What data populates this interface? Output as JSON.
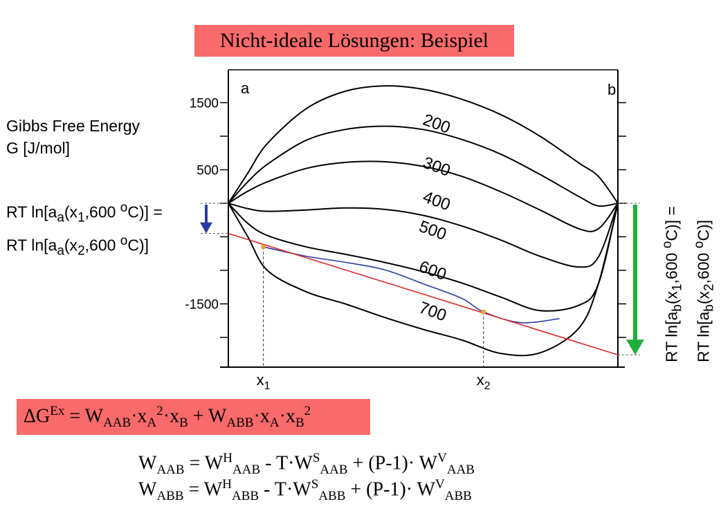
{
  "title": "Nicht-ideale Lösungen: Beispiel",
  "ylabel_line1": "Gibbs Free Energy",
  "ylabel_line2": "G [J/mol]",
  "rt_left": {
    "line1": {
      "pre": "RT ln[a",
      "sub": "a",
      "mid": "(x",
      "sub2": "1",
      "post1": ",600 ",
      "sup": "o",
      "post2": "C)] ="
    },
    "line2": {
      "pre": "RT ln[a",
      "sub": "a",
      "mid": "(x",
      "sub2": "2",
      "post1": ",600 ",
      "sup": "o",
      "post2": "C)]"
    }
  },
  "rt_right": {
    "line1": {
      "pre": "RT ln[a",
      "sub": "b",
      "mid": "(x",
      "sub2": "1",
      "post1": ",600 ",
      "sup": "o",
      "post2": "C)] ="
    },
    "line2": {
      "pre": "RT ln[a",
      "sub": "b",
      "mid": "(x",
      "sub2": "2",
      "post1": ",600 ",
      "sup": "o",
      "post2": "C)]"
    }
  },
  "chart_data": {
    "type": "line",
    "corner_labels": {
      "left": "a",
      "right": "b"
    },
    "ytick_labels": [
      {
        "value": 1500,
        "label": "1500"
      },
      {
        "value": 500,
        "label": "500"
      },
      {
        "value": -1500,
        "label": "-1500"
      }
    ],
    "yticks_minor": [
      1000,
      0,
      -500,
      -1000,
      -2000
    ],
    "ylim": [
      -2500,
      2000
    ],
    "xlim": [
      0,
      1
    ],
    "x_markers": [
      {
        "name": "x",
        "sub": "1",
        "x": 0.09,
        "y": -650
      },
      {
        "name": "x",
        "sub": "2",
        "x": 0.655,
        "y": -1620
      }
    ],
    "series": [
      {
        "name": "200",
        "x": [
          0,
          0.05,
          0.1,
          0.2,
          0.3,
          0.4,
          0.5,
          0.6,
          0.7,
          0.8,
          0.9,
          0.95,
          1
        ],
        "y": [
          0,
          450,
          890,
          1410,
          1670,
          1750,
          1700,
          1550,
          1320,
          1000,
          600,
          400,
          0
        ],
        "color": "#000000"
      },
      {
        "name": "300",
        "x": [
          0,
          0.05,
          0.1,
          0.2,
          0.3,
          0.4,
          0.5,
          0.6,
          0.7,
          0.8,
          0.9,
          0.95,
          1
        ],
        "y": [
          0,
          320,
          580,
          940,
          1100,
          1150,
          1100,
          950,
          730,
          430,
          100,
          -40,
          0
        ],
        "color": "#000000"
      },
      {
        "name": "400",
        "x": [
          0,
          0.05,
          0.1,
          0.2,
          0.3,
          0.4,
          0.5,
          0.6,
          0.7,
          0.8,
          0.9,
          0.95,
          1
        ],
        "y": [
          0,
          180,
          320,
          520,
          610,
          620,
          550,
          400,
          170,
          -100,
          -380,
          -380,
          0
        ],
        "color": "#000000"
      },
      {
        "name": "500",
        "x": [
          0,
          0.05,
          0.1,
          0.2,
          0.3,
          0.4,
          0.5,
          0.6,
          0.7,
          0.8,
          0.9,
          0.95,
          1
        ],
        "y": [
          0,
          -80,
          -120,
          -100,
          -70,
          -90,
          -180,
          -340,
          -550,
          -790,
          -950,
          -800,
          0
        ],
        "color": "#000000"
      },
      {
        "name": "600",
        "x": [
          0,
          0.05,
          0.1,
          0.2,
          0.3,
          0.4,
          0.5,
          0.6,
          0.7,
          0.8,
          0.9,
          0.95,
          1
        ],
        "y": [
          0,
          -300,
          -480,
          -650,
          -760,
          -880,
          -1020,
          -1190,
          -1400,
          -1600,
          -1520,
          -1200,
          0
        ],
        "color": "#000000"
      },
      {
        "name": "600 (blau)",
        "x": [
          0.09,
          0.2,
          0.3,
          0.4,
          0.5,
          0.6,
          0.655,
          0.75,
          0.85
        ],
        "y": [
          -650,
          -790,
          -880,
          -990,
          -1200,
          -1420,
          -1620,
          -1780,
          -1720
        ],
        "color": "#2a3aa6"
      },
      {
        "name": "700",
        "x": [
          0,
          0.05,
          0.1,
          0.2,
          0.3,
          0.4,
          0.5,
          0.6,
          0.7,
          0.8,
          0.9,
          0.95,
          1
        ],
        "y": [
          0,
          -500,
          -1000,
          -1320,
          -1500,
          -1700,
          -1880,
          -2040,
          -2240,
          -2230,
          -1860,
          -1200,
          0
        ],
        "color": "#000000"
      },
      {
        "name": "tangente",
        "x": [
          0,
          1
        ],
        "y": [
          -450,
          -2260
        ],
        "color": "#e02626"
      }
    ],
    "label_positions_data": [
      {
        "name": "200",
        "x": 0.53,
        "y": 1110
      },
      {
        "name": "300",
        "x": 0.53,
        "y": 470
      },
      {
        "name": "400",
        "x": 0.53,
        "y": -40
      },
      {
        "name": "500",
        "x": 0.52,
        "y": -480
      },
      {
        "name": "600",
        "x": 0.52,
        "y": -1080
      },
      {
        "name": "700",
        "x": 0.52,
        "y": -1690
      }
    ],
    "arrows": [
      {
        "name": "left-arrow",
        "color": "#2a3aa6",
        "x": 0,
        "y_from": 0,
        "y_to": -450
      },
      {
        "name": "right-arrow",
        "color": "#1fae3c",
        "x": 1,
        "y_from": 0,
        "y_to": -2260
      }
    ]
  },
  "formula_main": {
    "p1": "ΔG",
    "sup1": "Ex",
    "p2": " = W",
    "sub1": "AAB",
    "p3": "·x",
    "sub2": "A",
    "sup2": "2",
    "p4": "·x",
    "sub3": "B",
    "p5": " + W",
    "sub4": "ABB",
    "p6": "·x",
    "sub5": "A",
    "p7": "·x",
    "sub6": "B",
    "sup3": "2"
  },
  "formula_1": {
    "p1": "W",
    "sub1": "AAB",
    "p2": " = W",
    "sup1": "H",
    "sub2": "AAB",
    "p3": " - T·W",
    "sup2": "S",
    "sub3": "AAB",
    "p4": " + (P-1)· W",
    "sup3": "V",
    "sub4": "AAB"
  },
  "formula_2": {
    "p1": "W",
    "sub1": "ABB",
    "p2": " = W",
    "sup1": "H",
    "sub2": "ABB",
    "p3": " - T·W",
    "sup2": "S",
    "sub3": "ABB",
    "p4": " + (P-1)· W",
    "sup3": "V",
    "sub4": "ABB"
  }
}
